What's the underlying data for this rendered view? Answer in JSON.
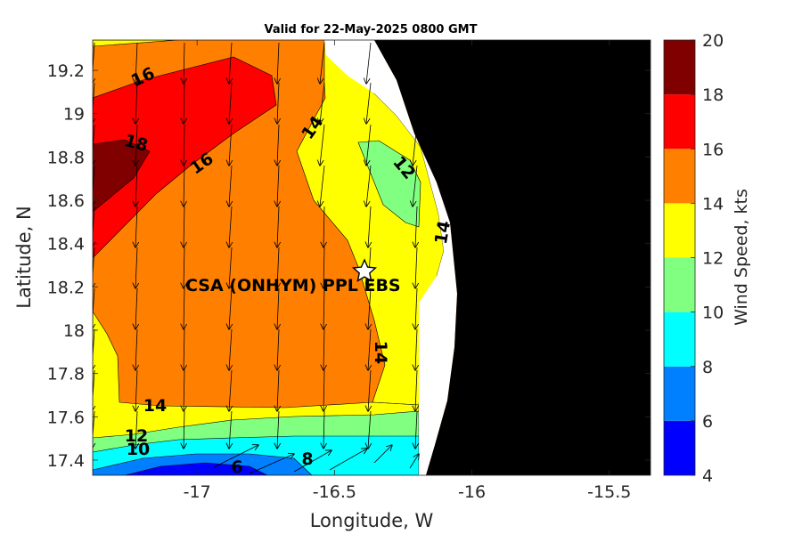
{
  "map": {
    "title": "Valid for 22-May-2025 0800 GMT",
    "xlabel": "Longitude, W",
    "ylabel": "Latitude, N",
    "x_ticks": [
      {
        "value": -17,
        "label": "-17"
      },
      {
        "value": -16.5,
        "label": "-16.5"
      },
      {
        "value": -16,
        "label": "-16"
      },
      {
        "value": -15.5,
        "label": "-15.5"
      }
    ],
    "y_ticks": [
      {
        "value": 19.2,
        "label": "19.2"
      },
      {
        "value": 19,
        "label": "19"
      },
      {
        "value": 18.8,
        "label": "18.8"
      },
      {
        "value": 18.6,
        "label": "18.6"
      },
      {
        "value": 18.4,
        "label": "18.4"
      },
      {
        "value": 18.2,
        "label": "18.2"
      },
      {
        "value": 18,
        "label": "18"
      },
      {
        "value": 17.8,
        "label": "17.8"
      },
      {
        "value": 17.6,
        "label": "17.6"
      },
      {
        "value": 17.4,
        "label": "17.4"
      }
    ],
    "xlim": [
      -17.38,
      -15.35
    ],
    "ylim": [
      17.33,
      19.34
    ],
    "site": {
      "label": "CSA (ONHYM) PPL EBS",
      "marker": "star-icon"
    },
    "contour_labels": [
      {
        "text": "16"
      },
      {
        "text": "18"
      },
      {
        "text": "16"
      },
      {
        "text": "14"
      },
      {
        "text": "12"
      },
      {
        "text": "14"
      },
      {
        "text": "14"
      },
      {
        "text": "14"
      },
      {
        "text": "12"
      },
      {
        "text": "10"
      },
      {
        "text": "6"
      },
      {
        "text": "8"
      }
    ],
    "land_color": "#000000",
    "coast_color": "#ffffff"
  },
  "colorbar": {
    "label": "Wind Speed, kts",
    "min": 4,
    "max": 20,
    "tick_labels": [
      "4",
      "6",
      "8",
      "10",
      "12",
      "14",
      "16",
      "18",
      "20"
    ],
    "colors": [
      "#0000ff",
      "#0080ff",
      "#00ffff",
      "#80ff80",
      "#ffff00",
      "#ff8000",
      "#ff0000",
      "#800000"
    ]
  }
}
